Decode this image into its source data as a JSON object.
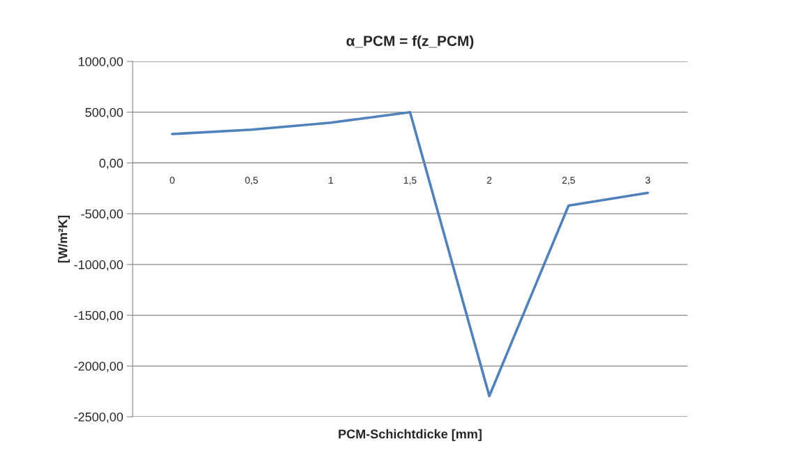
{
  "chart_data": {
    "type": "line",
    "title": "α_PCM = f(z_PCM)",
    "xlabel": "PCM-Schichtdicke [mm]",
    "ylabel": "[W/m²K]",
    "categories": [
      "0",
      "0,5",
      "1",
      "1,5",
      "2",
      "2,5",
      "3"
    ],
    "series": [
      {
        "color": "#4f81bd",
        "values": [
          285,
          328,
          397,
          500,
          -2295,
          -420,
          -295
        ]
      }
    ],
    "ylim": [
      -2500,
      1000
    ],
    "yticks": [
      {
        "value": -2500,
        "label": "-2500,00"
      },
      {
        "value": -2000,
        "label": "-2000,00"
      },
      {
        "value": -1500,
        "label": "-1500,00"
      },
      {
        "value": -1000,
        "label": "-1000,00"
      },
      {
        "value": -500,
        "label": "-500,00"
      },
      {
        "value": 0,
        "label": "0,00"
      },
      {
        "value": 500,
        "label": "500,00"
      },
      {
        "value": 1000,
        "label": "1000,00"
      }
    ],
    "grid": "y",
    "legend": false,
    "marker": "none",
    "line_style": "solid"
  }
}
